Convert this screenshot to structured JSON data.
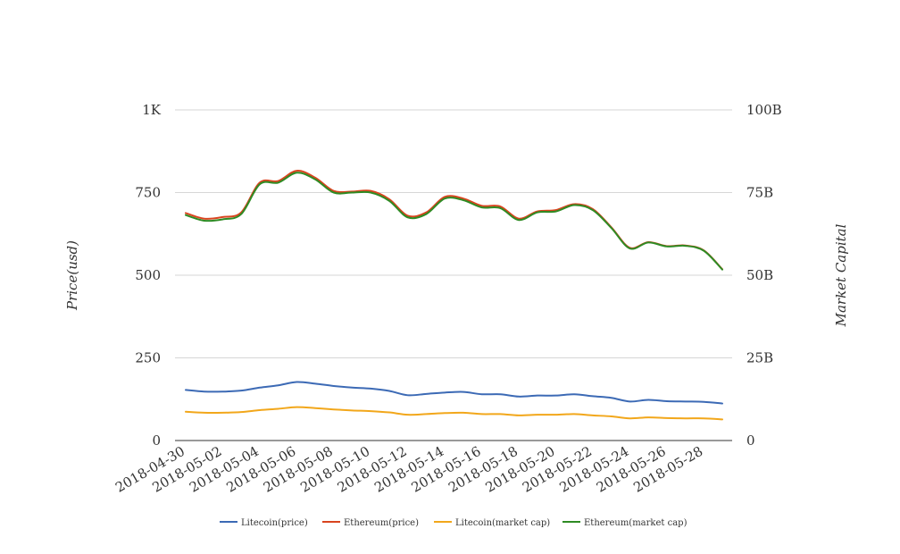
{
  "chart_data": {
    "type": "line",
    "title": "",
    "x": [
      "2018-04-30",
      "2018-05-01",
      "2018-05-02",
      "2018-05-03",
      "2018-05-04",
      "2018-05-05",
      "2018-05-06",
      "2018-05-07",
      "2018-05-08",
      "2018-05-09",
      "2018-05-10",
      "2018-05-11",
      "2018-05-12",
      "2018-05-13",
      "2018-05-14",
      "2018-05-15",
      "2018-05-16",
      "2018-05-17",
      "2018-05-18",
      "2018-05-19",
      "2018-05-20",
      "2018-05-21",
      "2018-05-22",
      "2018-05-23",
      "2018-05-24",
      "2018-05-25",
      "2018-05-26",
      "2018-05-27",
      "2018-05-28",
      "2018-05-29"
    ],
    "x_tick_labels": [
      "2018-04-30",
      "2018-05-02",
      "2018-05-04",
      "2018-05-06",
      "2018-05-08",
      "2018-05-10",
      "2018-05-12",
      "2018-05-14",
      "2018-05-16",
      "2018-05-18",
      "2018-05-20",
      "2018-05-22",
      "2018-05-24",
      "2018-05-26",
      "2018-05-28"
    ],
    "y_left": {
      "label": "Price(usd)",
      "ylim": [
        0,
        1000
      ],
      "ticks": [
        0,
        250,
        500,
        750,
        1000
      ],
      "tick_labels": [
        "0",
        "250",
        "500",
        "750",
        "1K"
      ]
    },
    "y_right": {
      "label": "Market Capital",
      "ylim": [
        0,
        100000000000
      ],
      "ticks": [
        0,
        25000000000,
        50000000000,
        75000000000,
        100000000000
      ],
      "tick_labels": [
        "0",
        "25B",
        "50B",
        "75B",
        "100B"
      ]
    },
    "grid": true,
    "legend_position": "bottom",
    "series": [
      {
        "name": "Litecoin(price)",
        "axis": "left",
        "color": "#3c6ab5",
        "values": [
          153,
          148,
          148,
          151,
          160,
          167,
          177,
          172,
          165,
          160,
          157,
          150,
          137,
          141,
          145,
          147,
          140,
          140,
          133,
          136,
          136,
          140,
          134,
          129,
          118,
          123,
          119,
          118,
          117,
          112
        ]
      },
      {
        "name": "Ethereum(price)",
        "axis": "left",
        "color": "#d9441f",
        "values": [
          688,
          671,
          676,
          690,
          780,
          785,
          816,
          795,
          755,
          753,
          755,
          730,
          680,
          690,
          737,
          732,
          710,
          708,
          671,
          693,
          697,
          715,
          700,
          645,
          583,
          600,
          588,
          590,
          575,
          518
        ]
      },
      {
        "name": "Litecoin(market cap)",
        "axis": "right",
        "color": "#f2a71b",
        "values": [
          8700000000,
          8400000000,
          8400000000,
          8600000000,
          9200000000,
          9600000000,
          10100000000,
          9800000000,
          9400000000,
          9100000000,
          8900000000,
          8500000000,
          7800000000,
          8000000000,
          8300000000,
          8400000000,
          8000000000,
          8000000000,
          7600000000,
          7800000000,
          7800000000,
          8000000000,
          7600000000,
          7300000000,
          6700000000,
          7000000000,
          6800000000,
          6700000000,
          6700000000,
          6400000000
        ]
      },
      {
        "name": "Ethereum(market cap)",
        "axis": "right",
        "color": "#2e8b24",
        "values": [
          68200000000,
          66500000000,
          66900000000,
          68500000000,
          77500000000,
          78000000000,
          81000000000,
          79000000000,
          75000000000,
          75000000000,
          75000000000,
          72500000000,
          67500000000,
          68500000000,
          73200000000,
          72700000000,
          70500000000,
          70300000000,
          66700000000,
          69000000000,
          69300000000,
          71200000000,
          69700000000,
          64300000000,
          58100000000,
          59900000000,
          58700000000,
          58900000000,
          57400000000,
          51700000000
        ]
      }
    ]
  }
}
